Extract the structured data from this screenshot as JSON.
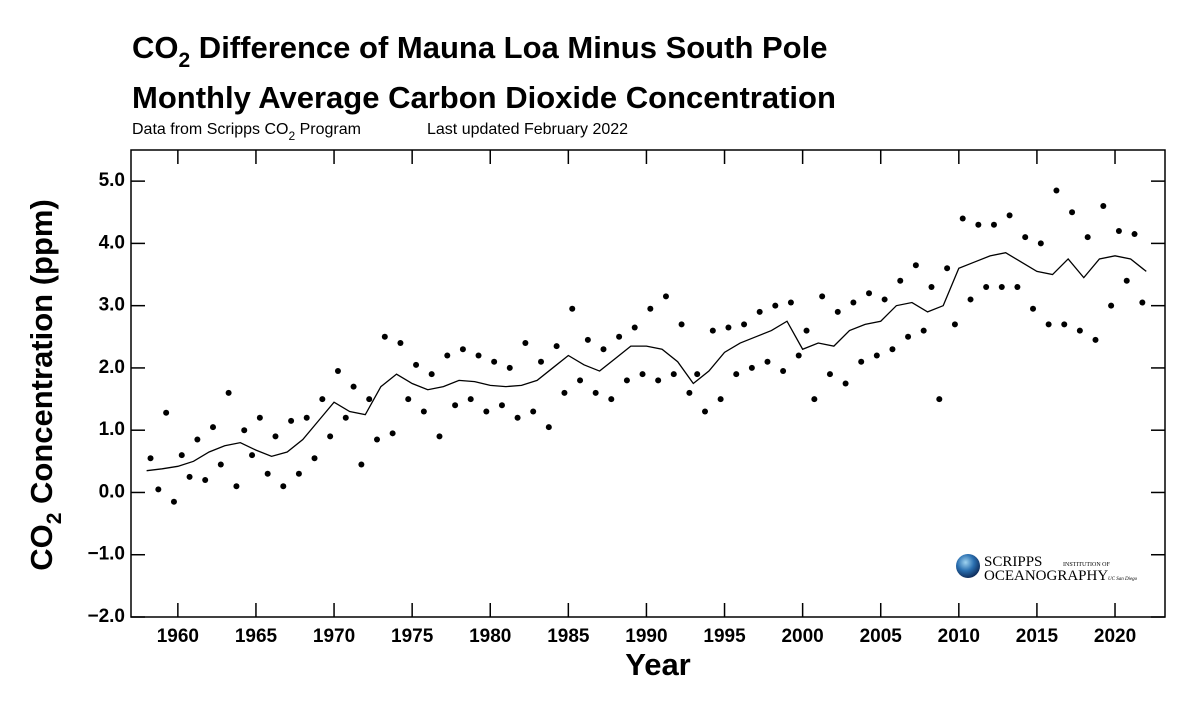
{
  "chart_data": {
    "type": "scatter",
    "title": [
      "CO",
      "2",
      " Difference of Mauna Loa Minus South Pole"
    ],
    "subtitle": "Monthly Average Carbon Dioxide Concentration",
    "source": [
      "Data from Scripps CO",
      "2",
      " Program"
    ],
    "updated": "Last updated February 2022",
    "xlabel": "Year",
    "ylabel": [
      "CO",
      "2",
      " Concentration (ppm)"
    ],
    "logo": [
      "SCRIPPS",
      "INSTITUTION OF",
      "OCEANOGRAPHY",
      "UC San Diego"
    ],
    "color": "#000000",
    "xlim": [
      1957,
      2023.2
    ],
    "ylim": [
      -2,
      5.5
    ],
    "xticks": [
      1960,
      1965,
      1970,
      1975,
      1980,
      1985,
      1990,
      1995,
      2000,
      2005,
      2010,
      2015,
      2020
    ],
    "yticks": [
      {
        "value": -2,
        "label": "−2.0"
      },
      {
        "value": -1,
        "label": "−1.0"
      },
      {
        "value": 0,
        "label": "0.0"
      },
      {
        "value": 1,
        "label": "1.0"
      },
      {
        "value": 2,
        "label": "2.0"
      },
      {
        "value": 3,
        "label": "3.0"
      },
      {
        "value": 4,
        "label": "4.0"
      },
      {
        "value": 5,
        "label": "5.0"
      }
    ],
    "points": {
      "x": [
        1958.25,
        1958.75,
        1959.25,
        1959.75,
        1960.25,
        1960.75,
        1961.25,
        1961.75,
        1962.25,
        1962.75,
        1963.25,
        1963.75,
        1964.25,
        1964.75,
        1965.25,
        1965.75,
        1966.25,
        1966.75,
        1967.25,
        1967.75,
        1968.25,
        1968.75,
        1969.25,
        1969.75,
        1970.25,
        1970.75,
        1971.25,
        1971.75,
        1972.25,
        1972.75,
        1973.25,
        1973.75,
        1974.25,
        1974.75,
        1975.25,
        1975.75,
        1976.25,
        1976.75,
        1977.25,
        1977.75,
        1978.25,
        1978.75,
        1979.25,
        1979.75,
        1980.25,
        1980.75,
        1981.25,
        1981.75,
        1982.25,
        1982.75,
        1983.25,
        1983.75,
        1984.25,
        1984.75,
        1985.25,
        1985.75,
        1986.25,
        1986.75,
        1987.25,
        1987.75,
        1988.25,
        1988.75,
        1989.25,
        1989.75,
        1990.25,
        1990.75,
        1991.25,
        1991.75,
        1992.25,
        1992.75,
        1993.25,
        1993.75,
        1994.25,
        1994.75,
        1995.25,
        1995.75,
        1996.25,
        1996.75,
        1997.25,
        1997.75,
        1998.25,
        1998.75,
        1999.25,
        1999.75,
        2000.25,
        2000.75,
        2001.25,
        2001.75,
        2002.25,
        2002.75,
        2003.25,
        2003.75,
        2004.25,
        2004.75,
        2005.25,
        2005.75,
        2006.25,
        2006.75,
        2007.25,
        2007.75,
        2008.25,
        2008.75,
        2009.25,
        2009.75,
        2010.25,
        2010.75,
        2011.25,
        2011.75,
        2012.25,
        2012.75,
        2013.25,
        2013.75,
        2014.25,
        2014.75,
        2015.25,
        2015.75,
        2016.25,
        2016.75,
        2017.25,
        2017.75,
        2018.25,
        2018.75,
        2019.25,
        2019.75,
        2020.25,
        2020.75,
        2021.25,
        2021.75
      ],
      "values": [
        0.55,
        0.05,
        1.28,
        -0.15,
        0.6,
        0.25,
        0.85,
        0.2,
        1.05,
        0.45,
        1.6,
        0.1,
        1.0,
        0.6,
        1.2,
        0.3,
        0.9,
        0.1,
        1.15,
        0.3,
        1.2,
        0.55,
        1.5,
        0.9,
        1.95,
        1.2,
        1.7,
        0.45,
        1.5,
        0.85,
        2.5,
        0.95,
        2.4,
        1.5,
        2.05,
        1.3,
        1.9,
        0.9,
        2.2,
        1.4,
        2.3,
        1.5,
        2.2,
        1.3,
        2.1,
        1.4,
        2.0,
        1.2,
        2.4,
        1.3,
        2.1,
        1.05,
        2.35,
        1.6,
        2.95,
        1.8,
        2.45,
        1.6,
        2.3,
        1.5,
        2.5,
        1.8,
        2.65,
        1.9,
        2.95,
        1.8,
        3.15,
        1.9,
        2.7,
        1.6,
        1.9,
        1.3,
        2.6,
        1.5,
        2.65,
        1.9,
        2.7,
        2.0,
        2.9,
        2.1,
        3.0,
        1.95,
        3.05,
        2.2,
        2.6,
        1.5,
        3.15,
        1.9,
        2.9,
        1.75,
        3.05,
        2.1,
        3.2,
        2.2,
        3.1,
        2.3,
        3.4,
        2.5,
        3.65,
        2.6,
        3.3,
        1.5,
        3.6,
        2.7,
        4.4,
        3.1,
        4.3,
        3.3,
        4.3,
        3.3,
        4.45,
        3.3,
        4.1,
        2.95,
        4.0,
        2.7,
        4.85,
        2.7,
        4.5,
        2.6,
        4.1,
        2.45,
        4.6,
        3.0,
        4.2,
        3.4,
        4.15,
        3.05
      ]
    },
    "curve": {
      "x": [
        1958,
        1959,
        1960,
        1961,
        1962,
        1963,
        1964,
        1965,
        1966,
        1967,
        1968,
        1969,
        1970,
        1971,
        1972,
        1973,
        1974,
        1975,
        1976,
        1977,
        1978,
        1979,
        1980,
        1981,
        1982,
        1983,
        1984,
        1985,
        1986,
        1987,
        1988,
        1989,
        1990,
        1991,
        1992,
        1993,
        1994,
        1995,
        1996,
        1997,
        1998,
        1999,
        2000,
        2001,
        2002,
        2003,
        2004,
        2005,
        2006,
        2007,
        2008,
        2009,
        2010,
        2011,
        2012,
        2013,
        2014,
        2015,
        2016,
        2017,
        2018,
        2019,
        2020,
        2021,
        2022
      ],
      "values": [
        0.35,
        0.38,
        0.42,
        0.5,
        0.65,
        0.75,
        0.8,
        0.68,
        0.58,
        0.65,
        0.85,
        1.15,
        1.45,
        1.3,
        1.25,
        1.7,
        1.9,
        1.75,
        1.65,
        1.7,
        1.8,
        1.78,
        1.72,
        1.7,
        1.72,
        1.8,
        2.0,
        2.2,
        2.05,
        1.95,
        2.15,
        2.35,
        2.35,
        2.3,
        2.1,
        1.75,
        1.95,
        2.25,
        2.4,
        2.5,
        2.6,
        2.75,
        2.3,
        2.4,
        2.35,
        2.6,
        2.7,
        2.75,
        3.0,
        3.05,
        2.9,
        3.0,
        3.6,
        3.7,
        3.8,
        3.85,
        3.7,
        3.55,
        3.5,
        3.75,
        3.45,
        3.75,
        3.8,
        3.75,
        3.55
      ]
    }
  }
}
